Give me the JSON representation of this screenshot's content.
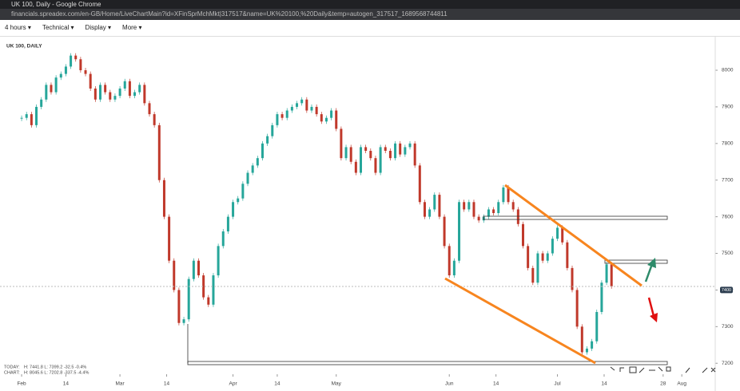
{
  "window": {
    "title": "UK 100, Daily - Google Chrome",
    "url": "financials.spreadex.com/en-GB/Home/LiveChartMain?id=XFinSprMchMkt|317517&name=UK%20100,%20Daily&temp=autogen_317517_1689568744811"
  },
  "toolbar": {
    "items": [
      "4 hours",
      "Technical",
      "Display",
      "More"
    ]
  },
  "stats": {
    "today_label": "TODAY:",
    "today": "H: 7441.8  L: 7399.2  -32.5  -0.4%",
    "chart_label": "CHART:",
    "chart": "H: 8045.6  L: 7202.8  -337.5  -4.4%"
  },
  "chart_data": {
    "type": "candlestick",
    "title": "UK 100, DAILY",
    "x": [
      0,
      1,
      2,
      3,
      4,
      5,
      6,
      7,
      8,
      9,
      10,
      11,
      12,
      13,
      14,
      15,
      16,
      17,
      18,
      19,
      20,
      21,
      22,
      23,
      24,
      25,
      26,
      27,
      28,
      29,
      30,
      31,
      32,
      33,
      34,
      35,
      36,
      37,
      38,
      39,
      40,
      41,
      42,
      43,
      44,
      45,
      46,
      47,
      48,
      49,
      50,
      51,
      52,
      53,
      54,
      55,
      56,
      57,
      58,
      59,
      60,
      61,
      62,
      63,
      64,
      65,
      66,
      67,
      68,
      69,
      70,
      71,
      72,
      73,
      74,
      75,
      76,
      77,
      78,
      79,
      80,
      81,
      82,
      83,
      84,
      85,
      86,
      87,
      88,
      89,
      90,
      91,
      92,
      93,
      94,
      95,
      96,
      97,
      98,
      99,
      100,
      101,
      102,
      103,
      104,
      105,
      106,
      107,
      108,
      109,
      110,
      111,
      112,
      113,
      114,
      115,
      116,
      117,
      118,
      119,
      120
    ],
    "series": [
      {
        "name": "UK 100",
        "up_color": "#26a69a",
        "down_color": "#c0392b",
        "values": [
          7870,
          7880,
          7850,
          7900,
          7920,
          7960,
          7940,
          7980,
          7990,
          8010,
          8040,
          8030,
          8000,
          7990,
          7950,
          7920,
          7960,
          7940,
          7920,
          7930,
          7950,
          7970,
          7930,
          7940,
          7960,
          7910,
          7880,
          7850,
          7700,
          7600,
          7480,
          7400,
          7310,
          7320,
          7430,
          7480,
          7440,
          7380,
          7360,
          7440,
          7520,
          7560,
          7600,
          7640,
          7650,
          7690,
          7720,
          7740,
          7760,
          7800,
          7820,
          7850,
          7880,
          7870,
          7890,
          7900,
          7910,
          7920,
          7890,
          7900,
          7880,
          7860,
          7870,
          7890,
          7840,
          7760,
          7790,
          7750,
          7720,
          7790,
          7780,
          7760,
          7720,
          7790,
          7780,
          7760,
          7800,
          7770,
          7790,
          7800,
          7740,
          7640,
          7600,
          7620,
          7660,
          7600,
          7520,
          7440,
          7480,
          7640,
          7620,
          7640,
          7600,
          7590,
          7600,
          7620,
          7610,
          7640,
          7680,
          7640,
          7620,
          7580,
          7520,
          7460,
          7420,
          7500,
          7480,
          7500,
          7540,
          7570,
          7530,
          7460,
          7400,
          7300,
          7230,
          7240,
          7260,
          7340,
          7420,
          7470,
          7410
        ]
      }
    ],
    "xlim": [
      -4.4,
      141.1
    ],
    "xticks": [
      {
        "value": 0,
        "label": "Feb"
      },
      {
        "value": 9,
        "label": "14"
      },
      {
        "value": 20,
        "label": "Mar"
      },
      {
        "value": 29.5,
        "label": "14"
      },
      {
        "value": 43,
        "label": "Apr"
      },
      {
        "value": 52,
        "label": "14"
      },
      {
        "value": 64,
        "label": "May"
      },
      {
        "value": 87,
        "label": "Jun"
      },
      {
        "value": 96.5,
        "label": "14"
      },
      {
        "value": 109,
        "label": "Jul"
      },
      {
        "value": 118.5,
        "label": "14"
      },
      {
        "value": 130.5,
        "label": "28"
      },
      {
        "value": 134.3,
        "label": "Aug"
      }
    ],
    "ylim": [
      7170,
      8085
    ],
    "yticks": [
      7200,
      7300,
      7400,
      7500,
      7600,
      7700,
      7800,
      7900,
      8000
    ],
    "price_marker": 7400
  }
}
